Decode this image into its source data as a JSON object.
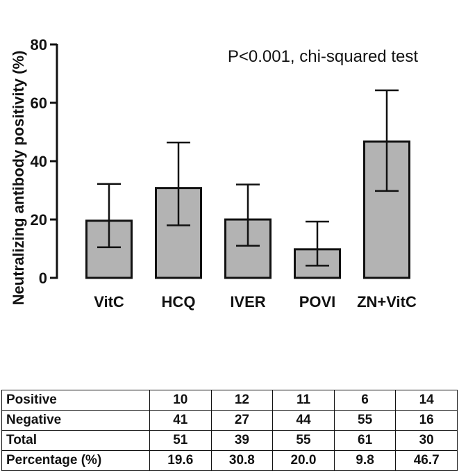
{
  "chart_data": {
    "type": "bar",
    "categories": [
      "VitC",
      "HCQ",
      "IVER",
      "POVI",
      "ZN+VitC"
    ],
    "values": [
      19.6,
      30.8,
      20.0,
      9.8,
      46.7
    ],
    "error_low": [
      10.5,
      18.0,
      11.0,
      4.2,
      29.8
    ],
    "error_high": [
      32.2,
      46.4,
      32.0,
      19.3,
      64.3
    ],
    "ylabel": "Neutralizing antibody positivity (%)",
    "ylim": [
      0,
      80
    ],
    "yticks": [
      "0",
      "20",
      "40",
      "60",
      "80"
    ],
    "annotation": "P<0.001, chi-squared test",
    "bar_color": "#b3b3b3",
    "edge_color": "#111111"
  },
  "table": {
    "rows": [
      {
        "label": "Positive",
        "values": [
          "10",
          "12",
          "11",
          "6",
          "14"
        ]
      },
      {
        "label": "Negative",
        "values": [
          "41",
          "27",
          "44",
          "55",
          "16"
        ]
      },
      {
        "label": "Total",
        "values": [
          "51",
          "39",
          "55",
          "61",
          "30"
        ]
      },
      {
        "label": "Percentage (%)",
        "values": [
          "19.6",
          "30.8",
          "20.0",
          "9.8",
          "46.7"
        ]
      }
    ]
  }
}
